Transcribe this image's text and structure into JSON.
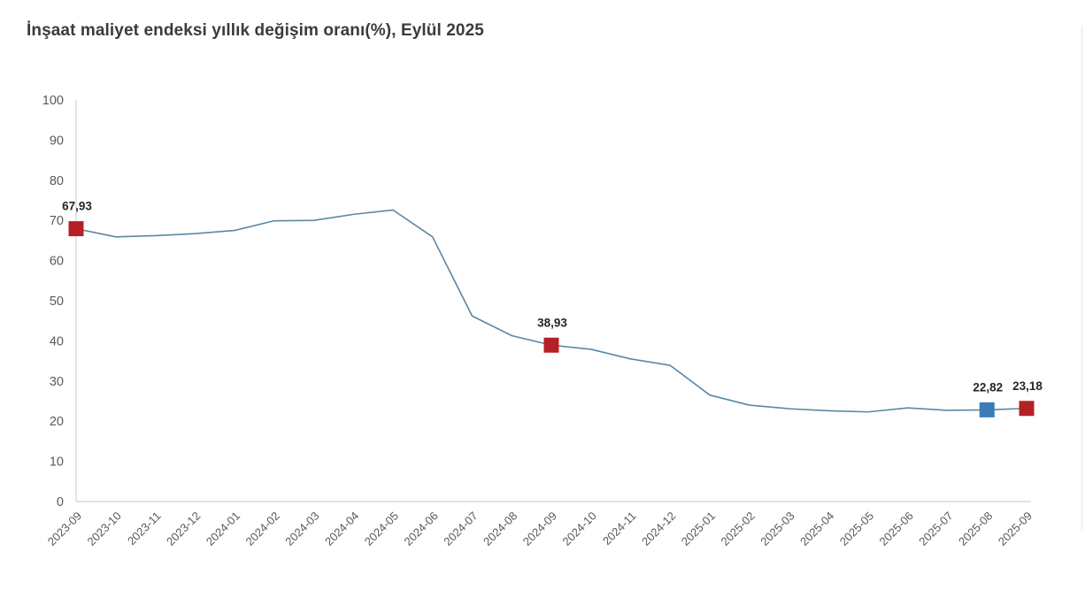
{
  "chart_data": {
    "type": "line",
    "title": "İnşaat maliyet endeksi yıllık değişim oranı(%), Eylül 2025",
    "categories": [
      "2023-09",
      "2023-10",
      "2023-11",
      "2023-12",
      "2024-01",
      "2024-02",
      "2024-03",
      "2024-04",
      "2024-05",
      "2024-06",
      "2024-07",
      "2024-08",
      "2024-09",
      "2024-10",
      "2024-11",
      "2024-12",
      "2025-01",
      "2025-02",
      "2025-03",
      "2025-04",
      "2025-05",
      "2025-06",
      "2025-07",
      "2025-08",
      "2025-09"
    ],
    "values": [
      67.93,
      65.9,
      66.2,
      66.7,
      67.5,
      69.9,
      70.0,
      71.5,
      72.6,
      65.9,
      46.2,
      41.3,
      38.93,
      37.9,
      35.5,
      33.9,
      26.5,
      24.0,
      23.1,
      22.6,
      22.3,
      23.3,
      22.7,
      22.82,
      23.18
    ],
    "xlabel": "",
    "ylabel": "",
    "ylim": [
      0,
      100
    ],
    "y_ticks": [
      0,
      10,
      20,
      30,
      40,
      50,
      60,
      70,
      80,
      90,
      100
    ],
    "grid": "off",
    "legend": "none",
    "highlighted_points": [
      {
        "category": "2023-09",
        "index": 0,
        "label": "67,93",
        "marker_color": "#b42025"
      },
      {
        "category": "2024-09",
        "index": 12,
        "label": "38,93",
        "marker_color": "#b42025"
      },
      {
        "category": "2025-08",
        "index": 23,
        "label": "22,82",
        "marker_color": "#3a7cb8"
      },
      {
        "category": "2025-09",
        "index": 24,
        "label": "23,18",
        "marker_color": "#b42025"
      }
    ],
    "colors": {
      "line": "#5b87a5",
      "axis": "#d9d9d9",
      "tick_labels": "#595959",
      "data_labels": "#262626",
      "title": "#3b3b3b",
      "marker_red": "#b42025",
      "marker_blue": "#3a7cb8"
    }
  }
}
